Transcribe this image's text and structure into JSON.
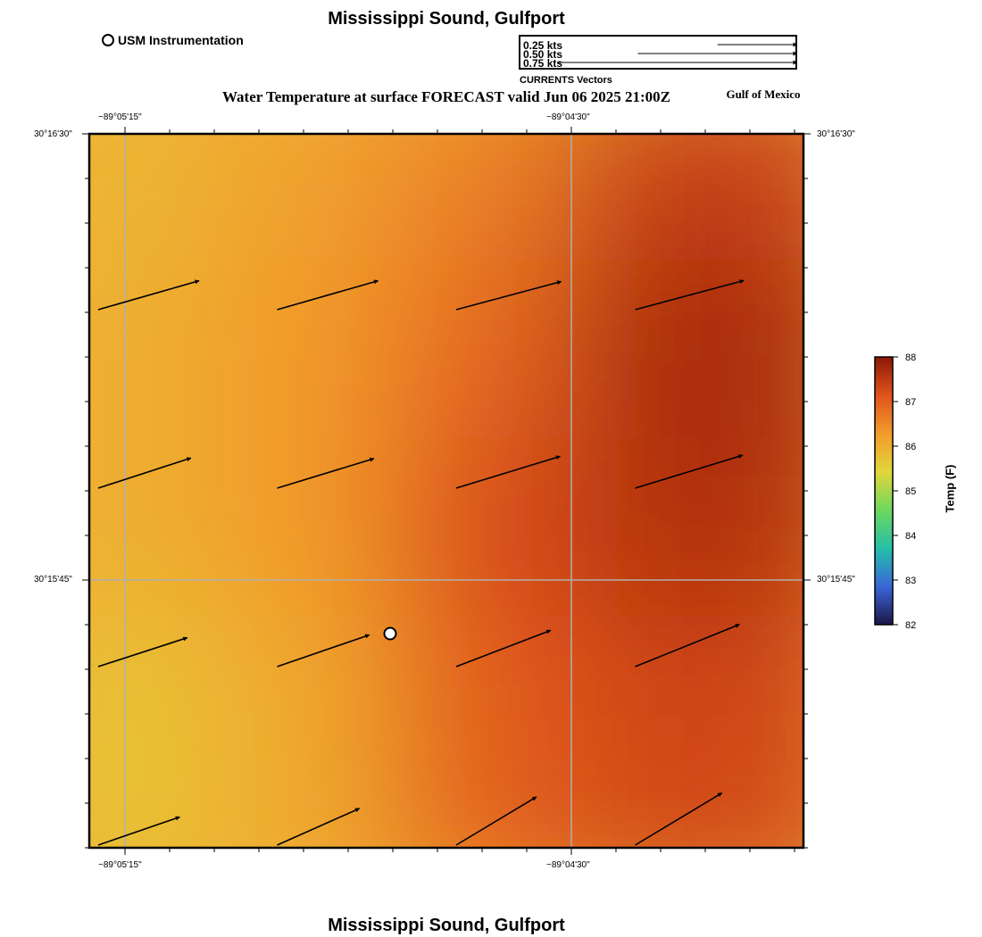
{
  "header": {
    "title": "Mississippi Sound, Gulfport",
    "product_title": "Water Temperature at surface FORECAST valid Jun 06 2025 21:00Z",
    "region": "Gulf of Mexico"
  },
  "footer": {
    "title": "Mississippi Sound, Gulfport"
  },
  "station_legend": {
    "label": "USM Instrumentation",
    "symbol": "circle"
  },
  "vector_legend": {
    "title": "CURRENTS Vectors",
    "entries": [
      {
        "label": "0.25 kts",
        "speed_kts": 0.25
      },
      {
        "label": "0.50 kts",
        "speed_kts": 0.5
      },
      {
        "label": "0.75 kts",
        "speed_kts": 0.75
      }
    ]
  },
  "map": {
    "lon_ticks": [
      "−89°05'15\"",
      "−89°04'30\""
    ],
    "lat_ticks": [
      "30°16'30\"",
      "30°15'45\""
    ],
    "station_marker": "USM Instrumentation",
    "temperature_grid": {
      "rows": 4,
      "cols": 4,
      "values_F": [
        [
          85.9,
          86.2,
          86.6,
          87.4
        ],
        [
          86.0,
          86.3,
          86.9,
          87.7
        ],
        [
          86.0,
          86.3,
          87.2,
          87.6
        ],
        [
          85.7,
          86.1,
          87.0,
          87.3
        ]
      ]
    },
    "current_vectors": {
      "rows": 4,
      "cols": 4,
      "speed_kts": [
        [
          0.28,
          0.28,
          0.29,
          0.3
        ],
        [
          0.26,
          0.27,
          0.29,
          0.3
        ],
        [
          0.25,
          0.26,
          0.27,
          0.3
        ],
        [
          0.23,
          0.24,
          0.25,
          0.27
        ]
      ],
      "direction_deg": [
        [
          74,
          74,
          75,
          75
        ],
        [
          72,
          73,
          73,
          73
        ],
        [
          72,
          71,
          69,
          68
        ],
        [
          71,
          66,
          59,
          59
        ]
      ]
    }
  },
  "colorbar": {
    "label": "Temp (F)",
    "ticks": [
      "82",
      "83",
      "84",
      "85",
      "86",
      "87",
      "88"
    ],
    "min": 82,
    "max": 88,
    "colors": [
      "#1d1648",
      "#3a66d8",
      "#25bfa8",
      "#6fd85e",
      "#e2d63a",
      "#f29b2c",
      "#e0521c",
      "#8b1808"
    ]
  },
  "colors": {
    "grid": "#b0b0b0",
    "frame": "#000000"
  }
}
